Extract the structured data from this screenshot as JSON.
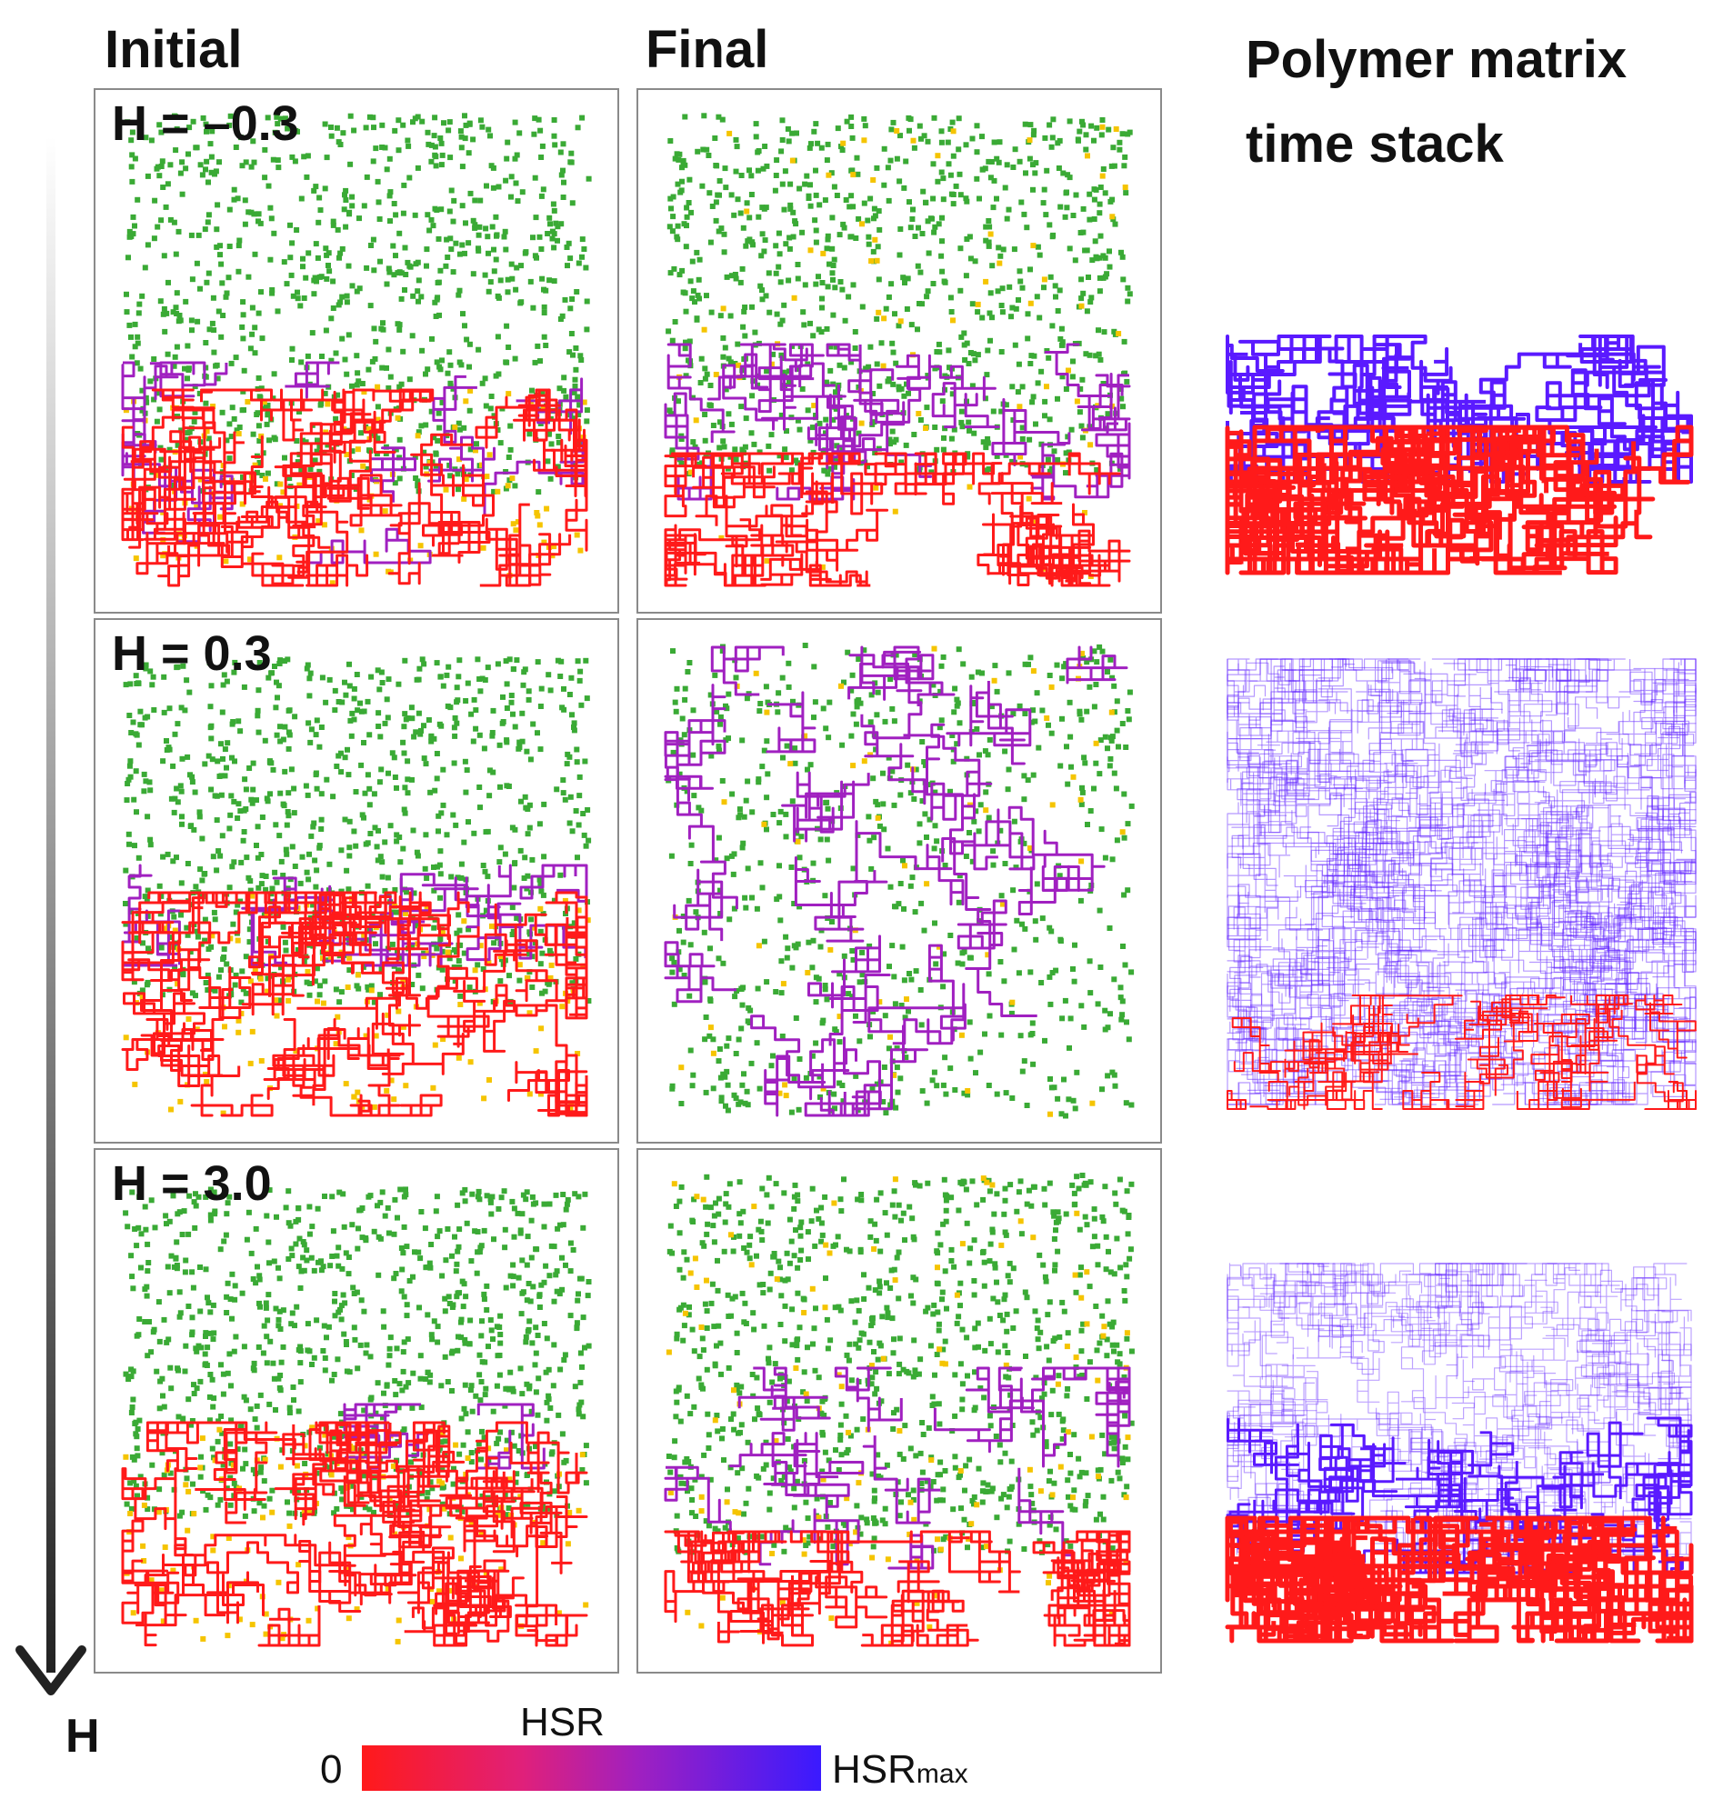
{
  "columns": {
    "initial": "Initial",
    "final": "Final",
    "stack": "Polymer matrix time stack"
  },
  "rows": [
    {
      "label": "H = –0.3"
    },
    {
      "label": "H = 0.3"
    },
    {
      "label": "H = 3.0"
    }
  ],
  "axis": {
    "label": "H"
  },
  "colorbar": {
    "title": "HSR",
    "min": "0",
    "max_main": "HSR",
    "max_sub": "max"
  },
  "colors": {
    "green_particle": "#3aaa35",
    "yellow_particle": "#f5c400",
    "polymer_red": "#ff1a1a",
    "polymer_magenta": "#a020c0",
    "polymer_blue": "#5a1aff"
  }
}
